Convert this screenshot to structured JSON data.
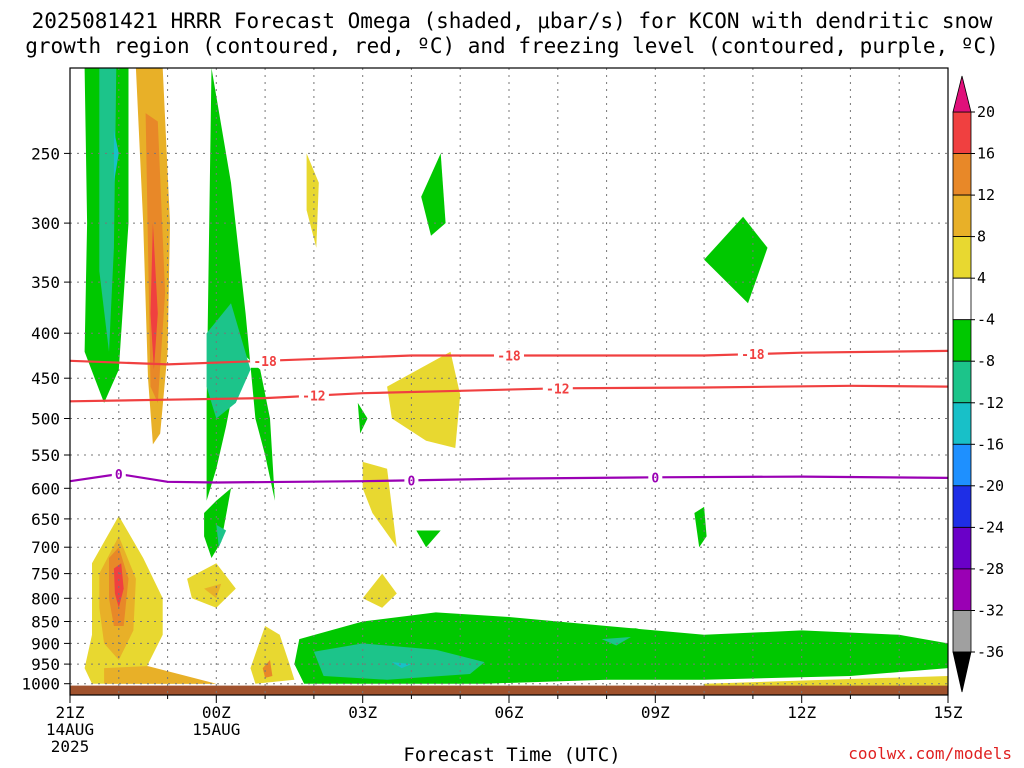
{
  "chart_data": {
    "type": "heatmap",
    "title_line1": "2025081421 HRRR Forecast Omega (shaded, μbar/s) for KCON with dendritic snow",
    "title_line2": "growth region (contoured, red, ºC) and freezing level (contoured, purple, ºC)",
    "xlabel": "Forecast Time (UTC)",
    "x_ticks": [
      "21Z",
      "00Z",
      "03Z",
      "06Z",
      "09Z",
      "12Z",
      "15Z"
    ],
    "x_tick_hours": [
      0,
      3,
      6,
      9,
      12,
      15,
      18
    ],
    "x_sublabels": [
      {
        "hour": 0,
        "lines": [
          "14AUG",
          "2025"
        ]
      },
      {
        "hour": 3,
        "lines": [
          "15AUG"
        ]
      }
    ],
    "y_ticks": [
      250,
      300,
      350,
      400,
      450,
      500,
      550,
      600,
      650,
      700,
      750,
      800,
      850,
      900,
      950,
      1000
    ],
    "y_axis": "pressure (hPa), log scale, inverted",
    "ylim": [
      200,
      1030
    ],
    "grid": true,
    "colorbar": {
      "levels": [
        -36,
        -32,
        -28,
        -24,
        -20,
        -16,
        -12,
        -8,
        -4,
        4,
        8,
        12,
        16,
        20
      ],
      "tick_labels": [
        "20",
        "16",
        "12",
        "8",
        "4",
        "-4",
        "-8",
        "-12",
        "-16",
        "-20",
        "-24",
        "-28",
        "-32",
        "-36"
      ],
      "colors": [
        "#000000",
        "#a0a0a0",
        "#9a00b4",
        "#6a00c8",
        "#1e2ee6",
        "#1e90ff",
        "#18c0c8",
        "#1cc48a",
        "#00c800",
        "#ffffff",
        "#e8d830",
        "#e8b028",
        "#e88828",
        "#f04040",
        "#e0107a"
      ]
    },
    "contour_lines": [
      {
        "value": "-18",
        "color": "#f04040",
        "points": [
          [
            0,
            430
          ],
          [
            2,
            434
          ],
          [
            4,
            430
          ],
          [
            7,
            424
          ],
          [
            10,
            424
          ],
          [
            13,
            424
          ],
          [
            15,
            421
          ],
          [
            18,
            419
          ]
        ]
      },
      {
        "value": "-12",
        "color": "#f04040",
        "points": [
          [
            0,
            478
          ],
          [
            2,
            476
          ],
          [
            4,
            474
          ],
          [
            6,
            468
          ],
          [
            8,
            465
          ],
          [
            10,
            462
          ],
          [
            13,
            461
          ],
          [
            16,
            459
          ],
          [
            18,
            460
          ]
        ]
      },
      {
        "value": "0",
        "color": "#9a00b4",
        "points": [
          [
            0,
            589
          ],
          [
            1,
            578
          ],
          [
            2,
            590
          ],
          [
            3,
            591
          ],
          [
            6,
            589
          ],
          [
            9,
            585
          ],
          [
            12,
            583
          ],
          [
            15,
            582
          ],
          [
            18,
            584
          ]
        ]
      }
    ],
    "contour_label_hours": {
      "-18": [
        4,
        9,
        14
      ],
      "-12": [
        5,
        10
      ],
      "0": [
        1,
        7,
        12
      ]
    },
    "omega_regions": [
      {
        "level": -8,
        "points": [
          [
            0.3,
            200
          ],
          [
            1.2,
            200
          ],
          [
            1.2,
            300
          ],
          [
            1.0,
            440
          ],
          [
            0.7,
            480
          ],
          [
            0.3,
            420
          ],
          [
            0.35,
            300
          ]
        ]
      },
      {
        "level": -12,
        "points": [
          [
            0.6,
            200
          ],
          [
            0.95,
            200
          ],
          [
            0.9,
            320
          ],
          [
            0.8,
            420
          ],
          [
            0.6,
            340
          ]
        ]
      },
      {
        "level": -16,
        "points": [
          [
            0.9,
            235
          ],
          [
            1.0,
            250
          ],
          [
            0.9,
            270
          ]
        ]
      },
      {
        "level": 8,
        "points": [
          [
            1.35,
            200
          ],
          [
            1.9,
            200
          ],
          [
            2.05,
            300
          ],
          [
            2.0,
            420
          ],
          [
            1.85,
            520
          ],
          [
            1.7,
            535
          ],
          [
            1.6,
            450
          ],
          [
            1.5,
            300
          ]
        ]
      },
      {
        "level": 12,
        "points": [
          [
            1.55,
            225
          ],
          [
            1.8,
            230
          ],
          [
            1.95,
            360
          ],
          [
            1.8,
            480
          ],
          [
            1.65,
            460
          ],
          [
            1.6,
            320
          ]
        ]
      },
      {
        "level": 16,
        "points": [
          [
            1.7,
            300
          ],
          [
            1.8,
            380
          ],
          [
            1.72,
            440
          ],
          [
            1.65,
            380
          ]
        ]
      },
      {
        "level": -8,
        "points": [
          [
            2.9,
            200
          ],
          [
            3.3,
            270
          ],
          [
            3.6,
            380
          ],
          [
            3.8,
            500
          ],
          [
            4.0,
            550
          ],
          [
            4.2,
            620
          ],
          [
            4.1,
            500
          ],
          [
            3.9,
            440
          ],
          [
            3.5,
            420
          ],
          [
            3.2,
            510
          ],
          [
            3.0,
            570
          ],
          [
            2.8,
            620
          ],
          [
            2.8,
            480
          ]
        ]
      },
      {
        "level": -12,
        "points": [
          [
            2.8,
            400
          ],
          [
            3.3,
            370
          ],
          [
            3.7,
            440
          ],
          [
            3.4,
            480
          ],
          [
            3.0,
            500
          ],
          [
            2.8,
            460
          ]
        ]
      },
      {
        "level": 4,
        "points": [
          [
            4.85,
            250
          ],
          [
            5.1,
            270
          ],
          [
            5.05,
            320
          ],
          [
            4.85,
            290
          ]
        ]
      },
      {
        "level": -8,
        "points": [
          [
            2.75,
            640
          ],
          [
            3.0,
            620
          ],
          [
            3.3,
            600
          ],
          [
            3.1,
            690
          ],
          [
            2.9,
            720
          ],
          [
            2.75,
            680
          ]
        ]
      },
      {
        "level": -12,
        "points": [
          [
            3.0,
            660
          ],
          [
            3.2,
            670
          ],
          [
            3.05,
            700
          ]
        ]
      },
      {
        "level": 4,
        "points": [
          [
            0.45,
            730
          ],
          [
            1.0,
            645
          ],
          [
            1.5,
            720
          ],
          [
            1.9,
            800
          ],
          [
            1.9,
            880
          ],
          [
            1.6,
            950
          ],
          [
            1.5,
            990
          ],
          [
            3.0,
            1000
          ],
          [
            0.45,
            1000
          ],
          [
            0.3,
            960
          ],
          [
            0.45,
            880
          ]
        ]
      },
      {
        "level": 8,
        "points": [
          [
            0.6,
            750
          ],
          [
            1.0,
            680
          ],
          [
            1.35,
            760
          ],
          [
            1.3,
            870
          ],
          [
            1.0,
            940
          ],
          [
            0.7,
            900
          ],
          [
            0.6,
            820
          ]
        ]
      },
      {
        "level": 12,
        "points": [
          [
            0.8,
            720
          ],
          [
            1.0,
            700
          ],
          [
            1.2,
            760
          ],
          [
            1.1,
            860
          ],
          [
            0.9,
            860
          ],
          [
            0.8,
            800
          ]
        ]
      },
      {
        "level": 16,
        "points": [
          [
            0.9,
            740
          ],
          [
            1.05,
            730
          ],
          [
            1.1,
            780
          ],
          [
            1.0,
            820
          ],
          [
            0.92,
            790
          ]
        ]
      },
      {
        "level": 8,
        "points": [
          [
            0.7,
            960
          ],
          [
            1.6,
            955
          ],
          [
            3.0,
            1000
          ],
          [
            0.7,
            1000
          ]
        ]
      },
      {
        "level": 4,
        "points": [
          [
            2.4,
            760
          ],
          [
            3.0,
            730
          ],
          [
            3.4,
            780
          ],
          [
            3.0,
            820
          ],
          [
            2.5,
            800
          ]
        ]
      },
      {
        "level": 8,
        "points": [
          [
            2.75,
            780
          ],
          [
            3.1,
            770
          ],
          [
            3.0,
            800
          ]
        ]
      },
      {
        "level": 4,
        "points": [
          [
            3.7,
            960
          ],
          [
            4.0,
            860
          ],
          [
            4.3,
            880
          ],
          [
            4.5,
            950
          ],
          [
            4.6,
            990
          ],
          [
            3.8,
            1000
          ]
        ]
      },
      {
        "level": 12,
        "points": [
          [
            3.95,
            960
          ],
          [
            4.1,
            940
          ],
          [
            4.15,
            980
          ],
          [
            4.0,
            985
          ]
        ]
      },
      {
        "level": 4,
        "points": [
          [
            6.0,
            560
          ],
          [
            6.5,
            570
          ],
          [
            6.7,
            700
          ],
          [
            6.2,
            640
          ],
          [
            6.0,
            600
          ]
        ]
      },
      {
        "level": 4,
        "points": [
          [
            6.4,
            750
          ],
          [
            6.7,
            790
          ],
          [
            6.4,
            820
          ],
          [
            6.0,
            800
          ]
        ]
      },
      {
        "level": -8,
        "points": [
          [
            4.7,
            890
          ],
          [
            6.0,
            850
          ],
          [
            7.5,
            830
          ],
          [
            9.0,
            840
          ],
          [
            11.0,
            860
          ],
          [
            13.0,
            880
          ],
          [
            15.0,
            870
          ],
          [
            17.0,
            880
          ],
          [
            18.0,
            900
          ],
          [
            18.0,
            960
          ],
          [
            16.0,
            980
          ],
          [
            13.0,
            990
          ],
          [
            11.0,
            990
          ],
          [
            8.5,
            1000
          ],
          [
            4.8,
            1000
          ],
          [
            4.6,
            950
          ]
        ]
      },
      {
        "level": -12,
        "points": [
          [
            5.0,
            920
          ],
          [
            6.0,
            900
          ],
          [
            7.5,
            915
          ],
          [
            8.5,
            945
          ],
          [
            8.2,
            975
          ],
          [
            6.5,
            990
          ],
          [
            5.2,
            980
          ]
        ]
      },
      {
        "level": -16,
        "points": [
          [
            6.6,
            945
          ],
          [
            7.0,
            950
          ],
          [
            6.8,
            960
          ]
        ]
      },
      {
        "level": 4,
        "points": [
          [
            6.5,
            460
          ],
          [
            7.8,
            420
          ],
          [
            8.0,
            470
          ],
          [
            7.9,
            540
          ],
          [
            7.3,
            530
          ],
          [
            6.6,
            500
          ]
        ]
      },
      {
        "level": -8,
        "points": [
          [
            7.2,
            280
          ],
          [
            7.6,
            250
          ],
          [
            7.7,
            300
          ],
          [
            7.4,
            310
          ]
        ]
      },
      {
        "level": -8,
        "points": [
          [
            13.0,
            330
          ],
          [
            13.8,
            295
          ],
          [
            14.3,
            320
          ],
          [
            13.9,
            370
          ]
        ]
      },
      {
        "level": -8,
        "points": [
          [
            7.1,
            670
          ],
          [
            7.6,
            670
          ],
          [
            7.3,
            700
          ]
        ]
      },
      {
        "level": -8,
        "points": [
          [
            5.9,
            480
          ],
          [
            6.1,
            500
          ],
          [
            5.95,
            520
          ]
        ]
      },
      {
        "level": -8,
        "points": [
          [
            10.5,
            870
          ],
          [
            11.6,
            865
          ],
          [
            12.3,
            885
          ],
          [
            11.0,
            920
          ],
          [
            10.4,
            905
          ]
        ]
      },
      {
        "level": -12,
        "points": [
          [
            10.9,
            890
          ],
          [
            11.5,
            885
          ],
          [
            11.2,
            905
          ]
        ]
      },
      {
        "level": -8,
        "points": [
          [
            12.8,
            640
          ],
          [
            13.0,
            630
          ],
          [
            13.05,
            680
          ],
          [
            12.9,
            700
          ]
        ]
      },
      {
        "level": 4,
        "points": [
          [
            13.0,
            1000
          ],
          [
            15.5,
            990
          ],
          [
            18.0,
            980
          ],
          [
            18.0,
            1010
          ],
          [
            13.0,
            1010
          ]
        ]
      }
    ],
    "terrain_top_hpa": 1005,
    "terrain_color": "#a0522d"
  },
  "credit": "coolwx.com/models"
}
